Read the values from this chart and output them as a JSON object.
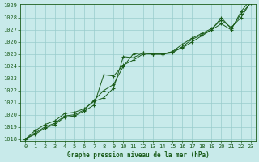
{
  "title": "Graphe pression niveau de la mer (hPa)",
  "bg_color": "#c8eaea",
  "grid_color": "#99cccc",
  "line_color": "#1a5c1a",
  "x_values": [
    0,
    1,
    2,
    3,
    4,
    5,
    6,
    7,
    8,
    9,
    10,
    11,
    12,
    13,
    14,
    15,
    16,
    17,
    18,
    19,
    20,
    21,
    22,
    23
  ],
  "line1": [
    1018.0,
    1018.7,
    1019.2,
    1019.5,
    1020.1,
    1020.2,
    1020.5,
    1021.1,
    1021.4,
    1022.2,
    1024.8,
    1024.7,
    1025.1,
    1025.0,
    1025.0,
    1025.1,
    1025.6,
    1026.2,
    1026.6,
    1027.0,
    1028.0,
    1027.1,
    1028.3,
    1029.2
  ],
  "line2": [
    1018.0,
    1018.5,
    1019.0,
    1019.3,
    1019.9,
    1020.0,
    1020.4,
    1021.2,
    1022.0,
    1022.5,
    1024.0,
    1025.0,
    1025.1,
    1025.0,
    1025.0,
    1025.2,
    1025.8,
    1026.3,
    1026.7,
    1027.1,
    1027.8,
    1027.2,
    1028.0,
    1029.3
  ],
  "line3": [
    1018.0,
    1018.4,
    1018.9,
    1019.2,
    1019.8,
    1019.9,
    1020.3,
    1020.8,
    1023.3,
    1023.2,
    1024.1,
    1024.5,
    1025.0,
    1025.0,
    1025.0,
    1025.2,
    1025.5,
    1026.0,
    1026.5,
    1027.0,
    1027.5,
    1027.0,
    1028.5,
    1029.5
  ],
  "ylim": [
    1018,
    1029
  ],
  "xlim": [
    0,
    23
  ],
  "yticks": [
    1018,
    1019,
    1020,
    1021,
    1022,
    1023,
    1024,
    1025,
    1026,
    1027,
    1028,
    1029
  ],
  "xticks": [
    0,
    1,
    2,
    3,
    4,
    5,
    6,
    7,
    8,
    9,
    10,
    11,
    12,
    13,
    14,
    15,
    16,
    17,
    18,
    19,
    20,
    21,
    22,
    23
  ]
}
